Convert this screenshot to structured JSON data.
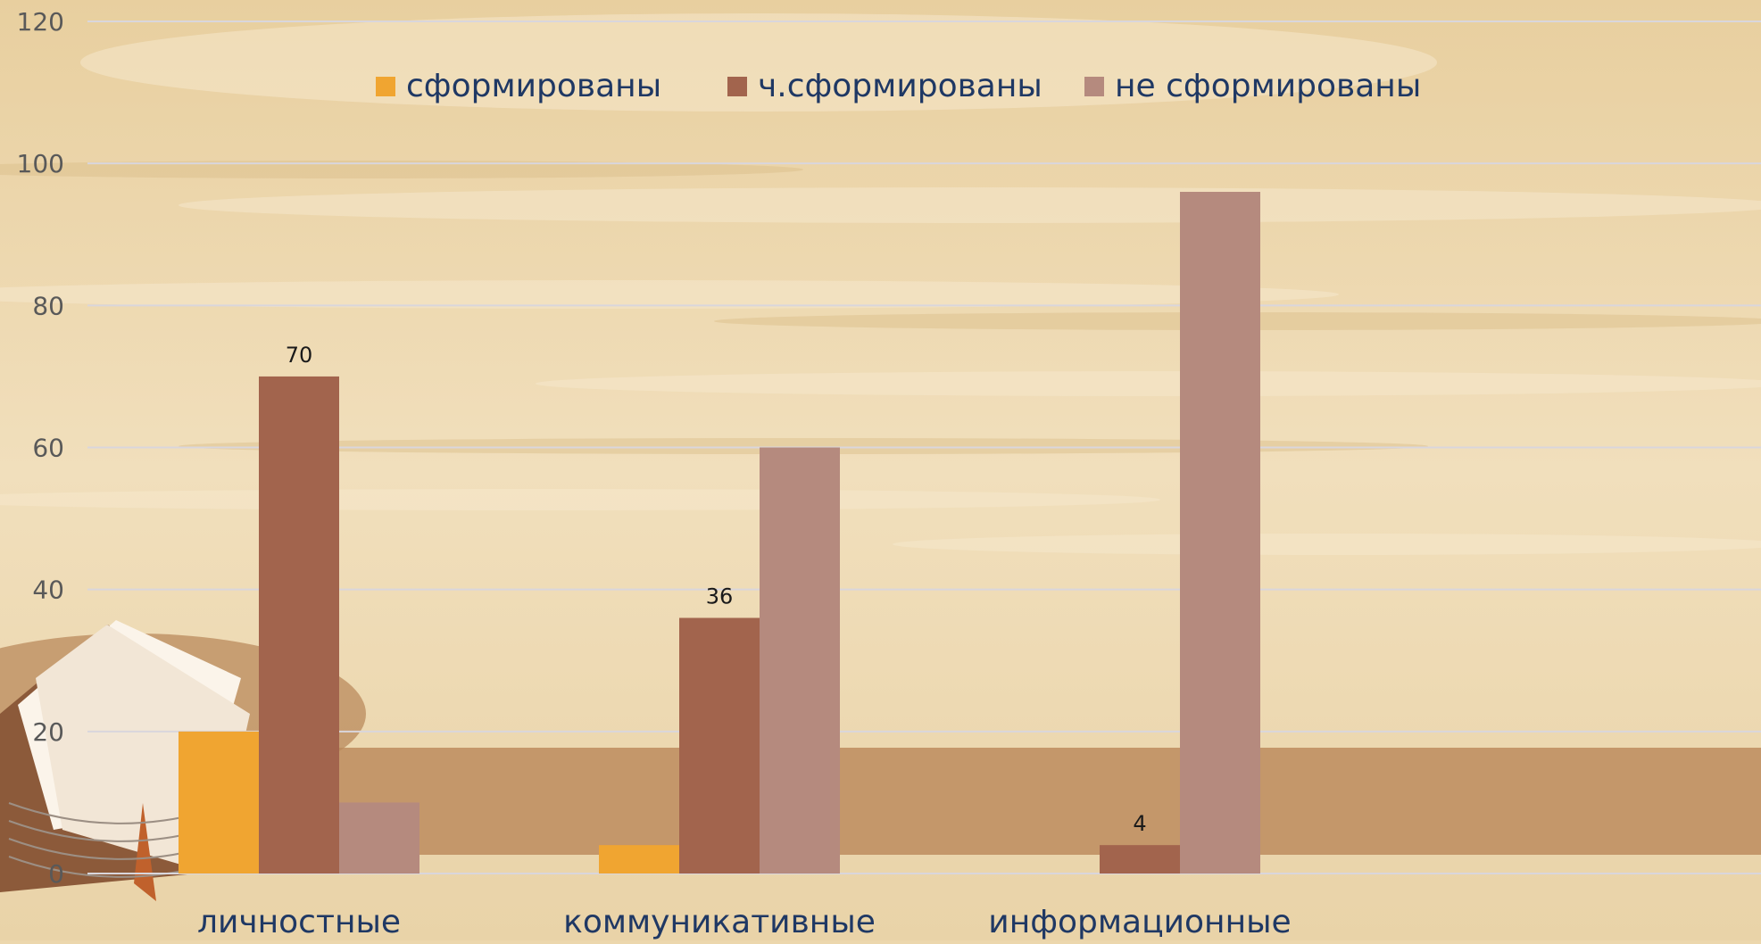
{
  "colors": {
    "background": "#ecd7ad",
    "band": "#c4976a",
    "gridline": "#d9d6dc",
    "tick_text": "#595959",
    "legend_text": "#1f3864",
    "category_text": "#1f3864",
    "data_label": "#1a1a1a"
  },
  "chart_data": {
    "type": "bar",
    "title": "",
    "xlabel": "",
    "ylabel": "",
    "ylim": [
      0,
      120
    ],
    "yticks": [
      0,
      20,
      40,
      60,
      80,
      100,
      120
    ],
    "grid": true,
    "legend_position": "top-center",
    "categories": [
      "личностные",
      "коммуникативные",
      "информационные"
    ],
    "series": [
      {
        "name": "сформированы",
        "color": "#f0a531",
        "values": [
          20,
          4,
          0
        ]
      },
      {
        "name": "ч.сформированы",
        "color": "#a2644d",
        "values": [
          70,
          36,
          4
        ]
      },
      {
        "name": "не сформированы",
        "color": "#b58a7e",
        "values": [
          10,
          60,
          96
        ]
      }
    ],
    "data_labels": [
      {
        "series": 1,
        "category": 0,
        "text": "70"
      },
      {
        "series": 1,
        "category": 1,
        "text": "36"
      },
      {
        "series": 1,
        "category": 2,
        "text": "4"
      }
    ]
  },
  "decor": {
    "book_illustration": "open-book-icon"
  }
}
